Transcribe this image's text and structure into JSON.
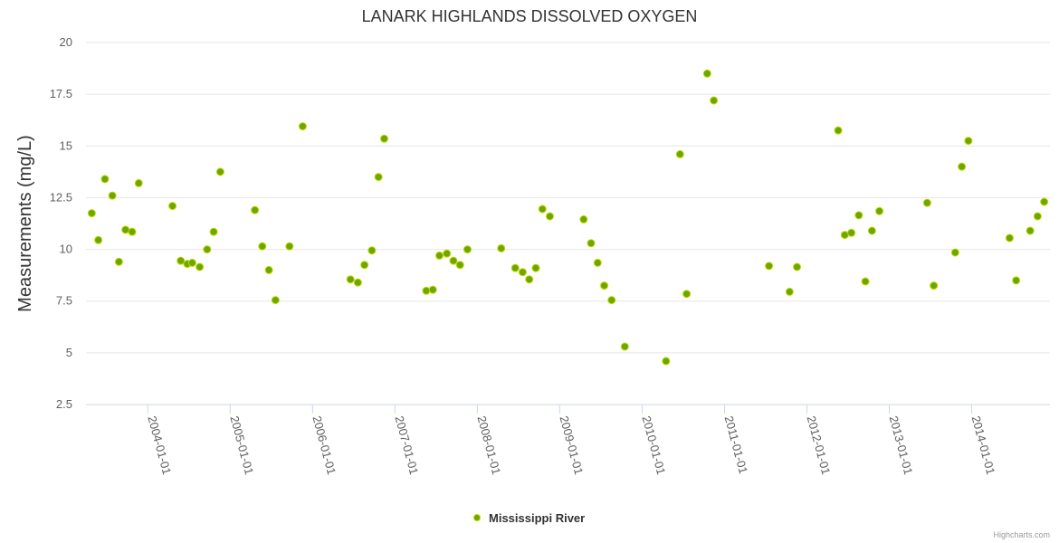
{
  "chart_data": {
    "type": "scatter",
    "title": "LANARK HIGHLANDS DISSOLVED OXYGEN",
    "ylabel": "Measurements (mg/L)",
    "xlabel": "",
    "ylim": [
      2.5,
      20
    ],
    "xlim": [
      2003.25,
      2014.95
    ],
    "yticks": [
      2.5,
      5,
      7.5,
      10,
      12.5,
      15,
      17.5,
      20
    ],
    "ytick_labels": [
      "2.5",
      "5",
      "7.5",
      "10",
      "12.5",
      "15",
      "17.5",
      "20"
    ],
    "xticks": [
      2004,
      2005,
      2006,
      2007,
      2008,
      2009,
      2010,
      2011,
      2012,
      2013,
      2014
    ],
    "xtick_labels": [
      "2004-01-01",
      "2005-01-01",
      "2006-01-01",
      "2007-01-01",
      "2008-01-01",
      "2009-01-01",
      "2010-01-01",
      "2011-01-01",
      "2012-01-01",
      "2013-01-01",
      "2014-01-01"
    ],
    "grid": true,
    "legend": "bottom-center",
    "credits": "Highcharts.com",
    "series": [
      {
        "name": "Mississippi River",
        "color": "#6aa700",
        "points": [
          {
            "x": 2003.32,
            "y": 11.75
          },
          {
            "x": 2003.4,
            "y": 10.45
          },
          {
            "x": 2003.48,
            "y": 13.4
          },
          {
            "x": 2003.57,
            "y": 12.6
          },
          {
            "x": 2003.65,
            "y": 9.4
          },
          {
            "x": 2003.73,
            "y": 10.95
          },
          {
            "x": 2003.81,
            "y": 10.85
          },
          {
            "x": 2003.89,
            "y": 13.2
          },
          {
            "x": 2004.3,
            "y": 12.1
          },
          {
            "x": 2004.4,
            "y": 9.45
          },
          {
            "x": 2004.48,
            "y": 9.3
          },
          {
            "x": 2004.54,
            "y": 9.35
          },
          {
            "x": 2004.63,
            "y": 9.15
          },
          {
            "x": 2004.72,
            "y": 10.0
          },
          {
            "x": 2004.8,
            "y": 10.85
          },
          {
            "x": 2004.88,
            "y": 13.75
          },
          {
            "x": 2005.3,
            "y": 11.9
          },
          {
            "x": 2005.39,
            "y": 10.15
          },
          {
            "x": 2005.47,
            "y": 9.0
          },
          {
            "x": 2005.55,
            "y": 7.55
          },
          {
            "x": 2005.72,
            "y": 10.15
          },
          {
            "x": 2005.88,
            "y": 15.95
          },
          {
            "x": 2006.46,
            "y": 8.55
          },
          {
            "x": 2006.55,
            "y": 8.4
          },
          {
            "x": 2006.63,
            "y": 9.25
          },
          {
            "x": 2006.72,
            "y": 9.95
          },
          {
            "x": 2006.8,
            "y": 13.5
          },
          {
            "x": 2006.87,
            "y": 15.35
          },
          {
            "x": 2007.38,
            "y": 8.0
          },
          {
            "x": 2007.46,
            "y": 8.05
          },
          {
            "x": 2007.54,
            "y": 9.7
          },
          {
            "x": 2007.63,
            "y": 9.8
          },
          {
            "x": 2007.71,
            "y": 9.45
          },
          {
            "x": 2007.79,
            "y": 9.25
          },
          {
            "x": 2007.88,
            "y": 10.0
          },
          {
            "x": 2008.29,
            "y": 10.05
          },
          {
            "x": 2008.46,
            "y": 9.1
          },
          {
            "x": 2008.55,
            "y": 8.9
          },
          {
            "x": 2008.63,
            "y": 8.55
          },
          {
            "x": 2008.71,
            "y": 9.1
          },
          {
            "x": 2008.79,
            "y": 11.95
          },
          {
            "x": 2008.88,
            "y": 11.6
          },
          {
            "x": 2009.29,
            "y": 11.45
          },
          {
            "x": 2009.38,
            "y": 10.3
          },
          {
            "x": 2009.46,
            "y": 9.35
          },
          {
            "x": 2009.54,
            "y": 8.25
          },
          {
            "x": 2009.63,
            "y": 7.55
          },
          {
            "x": 2009.79,
            "y": 5.3
          },
          {
            "x": 2010.29,
            "y": 4.6
          },
          {
            "x": 2010.46,
            "y": 14.6
          },
          {
            "x": 2010.54,
            "y": 7.85
          },
          {
            "x": 2010.79,
            "y": 18.5
          },
          {
            "x": 2010.87,
            "y": 17.2
          },
          {
            "x": 2011.54,
            "y": 9.2
          },
          {
            "x": 2011.79,
            "y": 7.95
          },
          {
            "x": 2011.88,
            "y": 9.15
          },
          {
            "x": 2012.38,
            "y": 15.75
          },
          {
            "x": 2012.46,
            "y": 10.7
          },
          {
            "x": 2012.54,
            "y": 10.8
          },
          {
            "x": 2012.63,
            "y": 11.65
          },
          {
            "x": 2012.71,
            "y": 8.45
          },
          {
            "x": 2012.79,
            "y": 10.9
          },
          {
            "x": 2012.88,
            "y": 11.85
          },
          {
            "x": 2013.46,
            "y": 12.25
          },
          {
            "x": 2013.54,
            "y": 8.25
          },
          {
            "x": 2013.8,
            "y": 9.85
          },
          {
            "x": 2013.88,
            "y": 14.0
          },
          {
            "x": 2013.96,
            "y": 15.25
          },
          {
            "x": 2014.46,
            "y": 10.55
          },
          {
            "x": 2014.54,
            "y": 8.5
          },
          {
            "x": 2014.71,
            "y": 10.9
          },
          {
            "x": 2014.8,
            "y": 11.6
          },
          {
            "x": 2014.88,
            "y": 12.3
          }
        ]
      }
    ]
  }
}
